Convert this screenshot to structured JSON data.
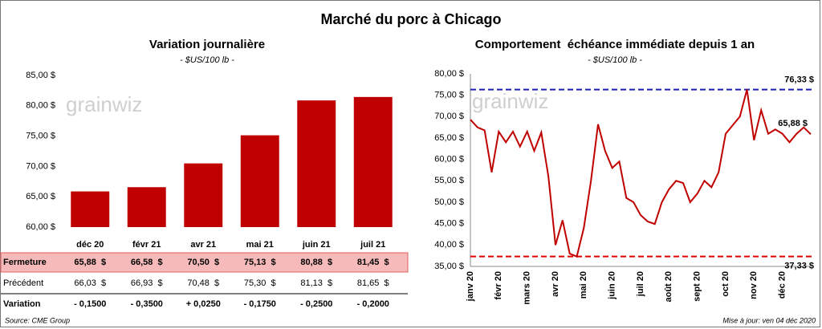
{
  "title": "Marché du porc à Chicago",
  "watermark": "grainwiz",
  "chart_data": [
    {
      "type": "bar",
      "title": "Variation journalière",
      "subtitle": "- $US/100 lb -",
      "categories": [
        "déc 20",
        "févr 21",
        "avr 21",
        "mai 21",
        "juin 21",
        "juil 21"
      ],
      "values": [
        65.88,
        66.58,
        70.5,
        75.13,
        80.88,
        81.45
      ],
      "color": "#c00000",
      "ylim": [
        60,
        85
      ],
      "yticks": [
        {
          "value": 60,
          "label": "60,00 $"
        },
        {
          "value": 65,
          "label": "65,00 $"
        },
        {
          "value": 70,
          "label": "70,00 $"
        },
        {
          "value": 75,
          "label": "75,00 $"
        },
        {
          "value": 80,
          "label": "80,00 $"
        },
        {
          "value": 85,
          "label": "85,00 $"
        }
      ],
      "grid": false
    },
    {
      "type": "line",
      "title": "Comportement  échéance immédiate depuis 1 an",
      "subtitle": "- $US/100 lb -",
      "categories": [
        "janv 20",
        null,
        null,
        null,
        "févr 20",
        null,
        null,
        null,
        "mars 20",
        null,
        null,
        null,
        "avr 20",
        null,
        null,
        null,
        "mai 20",
        null,
        null,
        null,
        "juin 20",
        null,
        null,
        null,
        "juil 20",
        null,
        null,
        null,
        "août 20",
        null,
        null,
        null,
        "sept 20",
        null,
        null,
        null,
        "oct 20",
        null,
        null,
        null,
        "nov 20",
        null,
        null,
        null,
        "déc 20",
        null,
        null,
        null,
        null
      ],
      "series": [
        {
          "name": "Échéance immédiate",
          "color": "#c00000",
          "values": [
            69.3,
            67.5,
            66.8,
            57.0,
            66.5,
            64.0,
            66.5,
            63.0,
            66.5,
            62.0,
            66.3,
            56.0,
            40.0,
            45.8,
            38.0,
            37.3,
            44.0,
            55.0,
            68.2,
            62.0,
            58.0,
            59.5,
            51.0,
            50.0,
            47.0,
            45.5,
            44.9,
            50.0,
            53.0,
            55.0,
            54.5,
            50.0,
            52.0,
            55.0,
            53.5,
            57.0,
            66.0,
            68.0,
            70.0,
            76.33,
            64.5,
            71.5,
            66.0,
            67.0,
            66.0,
            64.0,
            66.0,
            67.5,
            65.88
          ]
        }
      ],
      "end_label": "65,88 $",
      "reference_lines": [
        {
          "value": 76.33,
          "label": "76,33 $",
          "color": "#1f1fb4"
        },
        {
          "value": 37.33,
          "label": "37,33 $",
          "color": "#e00000"
        }
      ],
      "ylim": [
        35,
        80
      ],
      "yticks": [
        {
          "value": 35,
          "label": "35,00 $"
        },
        {
          "value": 40,
          "label": "40,00 $"
        },
        {
          "value": 45,
          "label": "45,00 $"
        },
        {
          "value": 50,
          "label": "50,00 $"
        },
        {
          "value": 55,
          "label": "55,00 $"
        },
        {
          "value": 60,
          "label": "60,00 $"
        },
        {
          "value": 65,
          "label": "65,00 $"
        },
        {
          "value": 70,
          "label": "70,00 $"
        },
        {
          "value": 75,
          "label": "75,00 $"
        },
        {
          "value": 80,
          "label": "80,00 $"
        }
      ],
      "grid": false
    }
  ],
  "table": {
    "rows": [
      {
        "label": "Fermeture",
        "cells": [
          "65,88  $",
          "66,58  $",
          "70,50  $",
          "75,13  $",
          "80,88  $",
          "81,45  $"
        ]
      },
      {
        "label": "Précédent",
        "cells": [
          "66,03  $",
          "66,93  $",
          "70,48  $",
          "75,30  $",
          "81,13  $",
          "81,65  $"
        ]
      },
      {
        "label": "Variation",
        "cells": [
          "- 0,1500",
          "- 0,3500",
          "+ 0,0250",
          "- 0,1750",
          "- 0,2500",
          "- 0,2000"
        ]
      }
    ]
  },
  "footer": {
    "source": "Source: CME Group",
    "updated": "Mise à jour: ven 04 déc 2020"
  }
}
